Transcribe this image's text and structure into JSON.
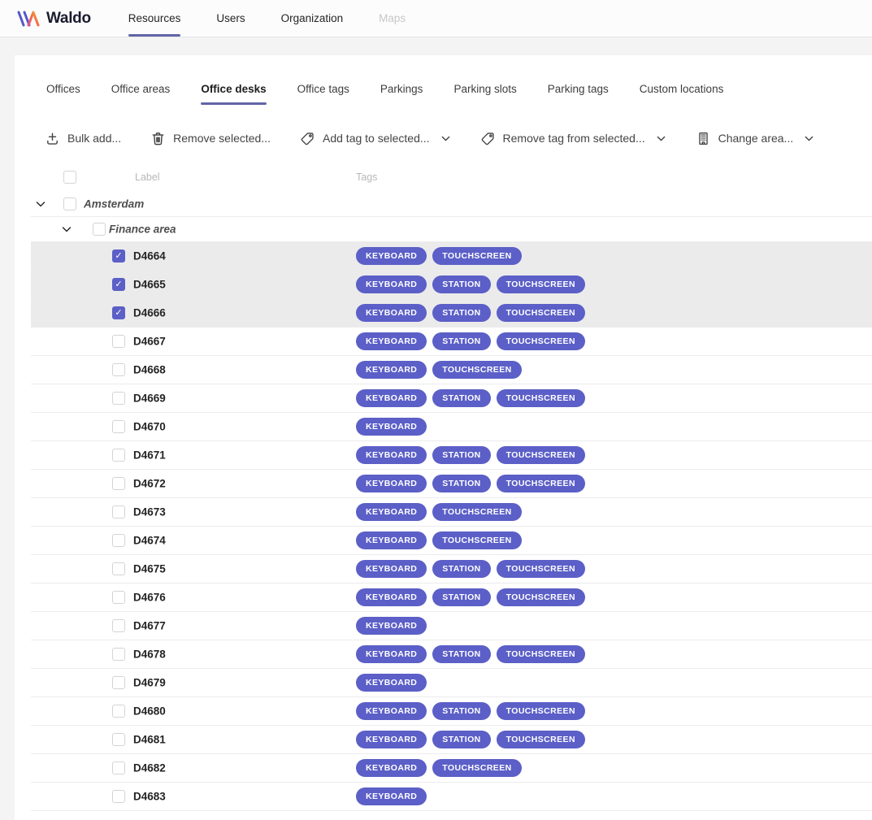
{
  "brand": {
    "name": "Waldo"
  },
  "nav": {
    "items": [
      {
        "label": "Resources",
        "active": true
      },
      {
        "label": "Users",
        "active": false
      },
      {
        "label": "Organization",
        "active": false
      },
      {
        "label": "Maps",
        "active": false,
        "disabled": true
      }
    ]
  },
  "tabs": [
    {
      "label": "Offices",
      "active": false
    },
    {
      "label": "Office areas",
      "active": false
    },
    {
      "label": "Office desks",
      "active": true
    },
    {
      "label": "Office tags",
      "active": false
    },
    {
      "label": "Parkings",
      "active": false
    },
    {
      "label": "Parking slots",
      "active": false
    },
    {
      "label": "Parking tags",
      "active": false
    },
    {
      "label": "Custom locations",
      "active": false
    }
  ],
  "toolbar": {
    "buttons": [
      {
        "label": "Bulk add...",
        "icon": "bulk-add-icon",
        "dropdown": false
      },
      {
        "label": "Remove selected...",
        "icon": "trash-icon",
        "dropdown": false
      },
      {
        "label": "Add tag to selected...",
        "icon": "tag-icon",
        "dropdown": true
      },
      {
        "label": "Remove tag from selected...",
        "icon": "tag-icon",
        "dropdown": true
      },
      {
        "label": "Change area...",
        "icon": "building-icon",
        "dropdown": true
      }
    ]
  },
  "table": {
    "columns": [
      "Label",
      "Tags"
    ],
    "groups": [
      {
        "label": "Amsterdam",
        "level": 0,
        "expanded": true
      },
      {
        "label": "Finance area",
        "level": 1,
        "expanded": true
      }
    ],
    "rows": [
      {
        "label": "D4664",
        "tags": [
          "KEYBOARD",
          "TOUCHSCREEN"
        ],
        "selected": true
      },
      {
        "label": "D4665",
        "tags": [
          "KEYBOARD",
          "STATION",
          "TOUCHSCREEN"
        ],
        "selected": true
      },
      {
        "label": "D4666",
        "tags": [
          "KEYBOARD",
          "STATION",
          "TOUCHSCREEN"
        ],
        "selected": true
      },
      {
        "label": "D4667",
        "tags": [
          "KEYBOARD",
          "STATION",
          "TOUCHSCREEN"
        ],
        "selected": false
      },
      {
        "label": "D4668",
        "tags": [
          "KEYBOARD",
          "TOUCHSCREEN"
        ],
        "selected": false
      },
      {
        "label": "D4669",
        "tags": [
          "KEYBOARD",
          "STATION",
          "TOUCHSCREEN"
        ],
        "selected": false
      },
      {
        "label": "D4670",
        "tags": [
          "KEYBOARD"
        ],
        "selected": false
      },
      {
        "label": "D4671",
        "tags": [
          "KEYBOARD",
          "STATION",
          "TOUCHSCREEN"
        ],
        "selected": false
      },
      {
        "label": "D4672",
        "tags": [
          "KEYBOARD",
          "STATION",
          "TOUCHSCREEN"
        ],
        "selected": false
      },
      {
        "label": "D4673",
        "tags": [
          "KEYBOARD",
          "TOUCHSCREEN"
        ],
        "selected": false
      },
      {
        "label": "D4674",
        "tags": [
          "KEYBOARD",
          "TOUCHSCREEN"
        ],
        "selected": false
      },
      {
        "label": "D4675",
        "tags": [
          "KEYBOARD",
          "STATION",
          "TOUCHSCREEN"
        ],
        "selected": false
      },
      {
        "label": "D4676",
        "tags": [
          "KEYBOARD",
          "STATION",
          "TOUCHSCREEN"
        ],
        "selected": false
      },
      {
        "label": "D4677",
        "tags": [
          "KEYBOARD"
        ],
        "selected": false
      },
      {
        "label": "D4678",
        "tags": [
          "KEYBOARD",
          "STATION",
          "TOUCHSCREEN"
        ],
        "selected": false
      },
      {
        "label": "D4679",
        "tags": [
          "KEYBOARD"
        ],
        "selected": false
      },
      {
        "label": "D4680",
        "tags": [
          "KEYBOARD",
          "STATION",
          "TOUCHSCREEN"
        ],
        "selected": false
      },
      {
        "label": "D4681",
        "tags": [
          "KEYBOARD",
          "STATION",
          "TOUCHSCREEN"
        ],
        "selected": false
      },
      {
        "label": "D4682",
        "tags": [
          "KEYBOARD",
          "TOUCHSCREEN"
        ],
        "selected": false
      },
      {
        "label": "D4683",
        "tags": [
          "KEYBOARD"
        ],
        "selected": false
      }
    ]
  },
  "colors": {
    "accent": "#5b5fc7",
    "nav_underline": "#6264a7",
    "selected_row_bg": "#ebebeb",
    "page_bg": "#f4f4f4"
  }
}
